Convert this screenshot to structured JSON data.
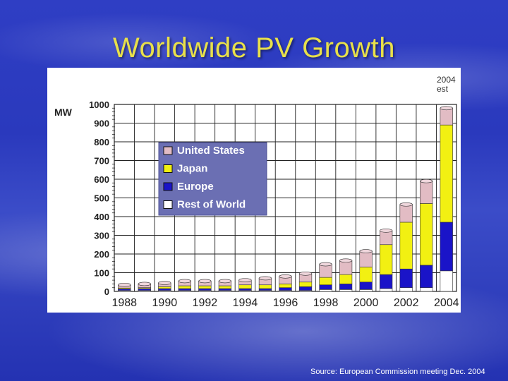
{
  "slide": {
    "title": "Worldwide PV Growth",
    "source": "Source: European Commission meeting Dec. 2004"
  },
  "chart_data": {
    "type": "bar",
    "stacked": true,
    "title": "",
    "xlabel": "",
    "ylabel": "MW",
    "ylim": [
      0,
      1000
    ],
    "yticks": [
      0,
      100,
      200,
      300,
      400,
      500,
      600,
      700,
      800,
      900,
      1000
    ],
    "grid": true,
    "legend_placement": "top-left",
    "estimate_note": [
      "2004",
      "est"
    ],
    "categories": [
      "1988",
      "1989",
      "1990",
      "1991",
      "1992",
      "1993",
      "1994",
      "1995",
      "1996",
      "1997",
      "1998",
      "1999",
      "2000",
      "2001",
      "2002",
      "2003",
      "2004"
    ],
    "xtick_labels": [
      "1988",
      "1990",
      "1992",
      "1994",
      "1996",
      "1998",
      "2000",
      "2002",
      "2004"
    ],
    "series": [
      {
        "name": "Rest of World",
        "color": "#ffffff",
        "values": [
          5,
          5,
          5,
          5,
          5,
          5,
          5,
          5,
          5,
          5,
          10,
          10,
          10,
          15,
          20,
          20,
          110
        ]
      },
      {
        "name": "Europe",
        "color": "#1a14c8",
        "values": [
          8,
          10,
          10,
          10,
          10,
          10,
          10,
          10,
          15,
          20,
          25,
          30,
          40,
          75,
          100,
          120,
          260
        ]
      },
      {
        "name": "Japan",
        "color": "#f2f012",
        "values": [
          5,
          5,
          10,
          15,
          15,
          15,
          20,
          20,
          20,
          25,
          40,
          50,
          80,
          160,
          250,
          330,
          520
        ]
      },
      {
        "name": "United States",
        "color": "#e2bcc4",
        "values": [
          17,
          20,
          20,
          25,
          25,
          25,
          25,
          35,
          40,
          45,
          70,
          75,
          85,
          75,
          95,
          120,
          90
        ]
      }
    ]
  }
}
